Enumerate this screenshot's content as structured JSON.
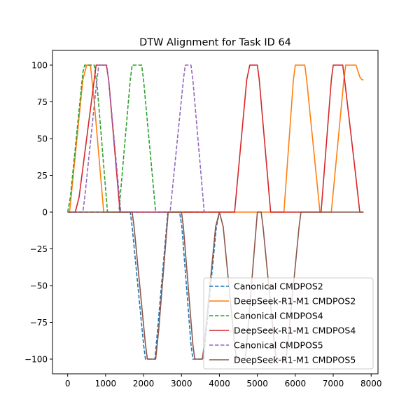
{
  "chart_data": {
    "type": "line",
    "title": "DTW Alignment for Task ID 64",
    "xlabel": "",
    "ylabel": "",
    "xlim": [
      -400,
      8180
    ],
    "ylim": [
      -110,
      110
    ],
    "xticks": [
      0,
      1000,
      2000,
      3000,
      4000,
      5000,
      6000,
      7000,
      8000
    ],
    "xtick_labels": [
      "0",
      "1000",
      "2000",
      "3000",
      "4000",
      "5000",
      "6000",
      "7000",
      "8000"
    ],
    "yticks": [
      -100,
      -75,
      -50,
      -25,
      0,
      25,
      50,
      75,
      100
    ],
    "ytick_labels": [
      "−100",
      "−75",
      "−50",
      "−25",
      "0",
      "25",
      "50",
      "75",
      "100"
    ],
    "grid": false,
    "legend_position": "lower-right",
    "series": [
      {
        "name": "Canonical CMDPOS2",
        "color": "#1f77b4",
        "style": "dashed",
        "points": [
          [
            0,
            0
          ],
          [
            1650,
            0
          ],
          [
            1700,
            -10
          ],
          [
            2000,
            -90
          ],
          [
            2050,
            -100
          ],
          [
            2300,
            -100
          ],
          [
            2370,
            -80
          ],
          [
            2640,
            0
          ],
          [
            2950,
            0
          ],
          [
            3010,
            -10
          ],
          [
            3250,
            -90
          ],
          [
            3300,
            -100
          ],
          [
            3580,
            -100
          ],
          [
            3620,
            -90
          ],
          [
            3920,
            -10
          ],
          [
            4000,
            0
          ]
        ]
      },
      {
        "name": "DeepSeek-R1-M1 CMDPOS2",
        "color": "#ff7f0e",
        "style": "solid",
        "points": [
          [
            0,
            0
          ],
          [
            50,
            0
          ],
          [
            400,
            90
          ],
          [
            500,
            100
          ],
          [
            600,
            100
          ],
          [
            700,
            75
          ],
          [
            950,
            0
          ],
          [
            5700,
            0
          ],
          [
            5950,
            90
          ],
          [
            6000,
            100
          ],
          [
            6250,
            100
          ],
          [
            6300,
            90
          ],
          [
            6650,
            0
          ],
          [
            6950,
            0
          ],
          [
            7280,
            90
          ],
          [
            7330,
            100
          ],
          [
            7600,
            100
          ],
          [
            7700,
            92
          ],
          [
            7760,
            90
          ],
          [
            7800,
            90
          ]
        ]
      },
      {
        "name": "Canonical CMDPOS4",
        "color": "#2ca02c",
        "style": "dashed",
        "points": [
          [
            0,
            0
          ],
          [
            70,
            10
          ],
          [
            400,
            95
          ],
          [
            450,
            100
          ],
          [
            700,
            100
          ],
          [
            780,
            85
          ],
          [
            1050,
            0
          ],
          [
            1350,
            0
          ],
          [
            1650,
            90
          ],
          [
            1700,
            100
          ],
          [
            1950,
            100
          ],
          [
            2000,
            90
          ],
          [
            2320,
            0
          ],
          [
            3600,
            0
          ]
        ]
      },
      {
        "name": "DeepSeek-R1-M1 CMDPOS4",
        "color": "#d62728",
        "style": "solid",
        "points": [
          [
            0,
            0
          ],
          [
            200,
            0
          ],
          [
            300,
            10
          ],
          [
            700,
            90
          ],
          [
            750,
            100
          ],
          [
            1020,
            100
          ],
          [
            1080,
            90
          ],
          [
            1380,
            0
          ],
          [
            4400,
            0
          ],
          [
            4720,
            90
          ],
          [
            4800,
            100
          ],
          [
            5000,
            100
          ],
          [
            5050,
            90
          ],
          [
            5350,
            0
          ],
          [
            6350,
            0
          ],
          [
            6680,
            0
          ],
          [
            6950,
            90
          ],
          [
            7000,
            100
          ],
          [
            7250,
            100
          ],
          [
            7300,
            90
          ],
          [
            7570,
            30
          ],
          [
            7700,
            0
          ],
          [
            7800,
            0
          ]
        ]
      },
      {
        "name": "Canonical CMDPOS5",
        "color": "#9467bd",
        "style": "dashed",
        "points": [
          [
            0,
            0
          ],
          [
            400,
            0
          ],
          [
            450,
            10
          ],
          [
            750,
            85
          ],
          [
            820,
            100
          ],
          [
            1030,
            100
          ],
          [
            1100,
            85
          ],
          [
            1400,
            0
          ],
          [
            2700,
            0
          ],
          [
            3050,
            90
          ],
          [
            3100,
            100
          ],
          [
            3250,
            100
          ],
          [
            3300,
            90
          ],
          [
            3600,
            0
          ],
          [
            3700,
            0
          ]
        ]
      },
      {
        "name": "DeepSeek-R1-M1 CMDPOS5",
        "color": "#8c564b",
        "style": "solid",
        "points": [
          [
            0,
            0
          ],
          [
            1700,
            0
          ],
          [
            1750,
            -10
          ],
          [
            2050,
            -90
          ],
          [
            2100,
            -100
          ],
          [
            2320,
            -100
          ],
          [
            2400,
            -80
          ],
          [
            2650,
            0
          ],
          [
            3000,
            0
          ],
          [
            3050,
            -10
          ],
          [
            3300,
            -90
          ],
          [
            3350,
            -100
          ],
          [
            3550,
            -100
          ],
          [
            3600,
            -90
          ],
          [
            3900,
            -10
          ],
          [
            4000,
            0
          ],
          [
            4100,
            -10
          ],
          [
            4400,
            -90
          ],
          [
            4450,
            -100
          ],
          [
            4680,
            -100
          ],
          [
            4720,
            -90
          ],
          [
            5000,
            0
          ],
          [
            5100,
            0
          ],
          [
            5150,
            -10
          ],
          [
            5450,
            -90
          ],
          [
            5500,
            -100
          ],
          [
            5750,
            -100
          ],
          [
            5800,
            -90
          ],
          [
            6100,
            -10
          ],
          [
            6150,
            0
          ],
          [
            7800,
            0
          ]
        ]
      }
    ]
  }
}
